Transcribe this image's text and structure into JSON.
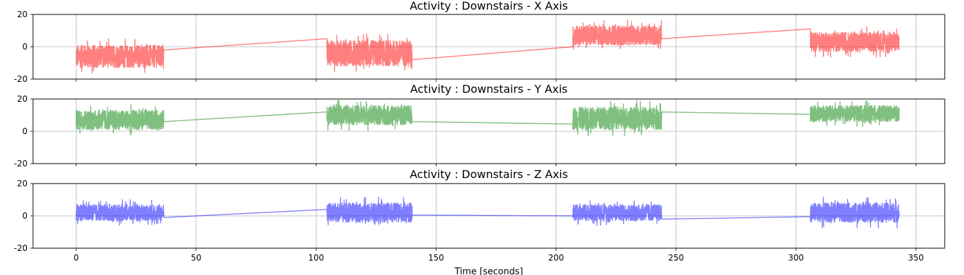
{
  "chart_data": [
    {
      "type": "line",
      "title": "Activity : Downstairs - X Axis",
      "xlabel": "",
      "ylabel": "",
      "xlim": [
        -18,
        362
      ],
      "ylim": [
        -20,
        20
      ],
      "yticks": [
        -20,
        0,
        20
      ],
      "grid": true,
      "series": [
        {
          "color": "#ff0000",
          "alpha": 0.5,
          "segments": [
            {
              "x_start": 0,
              "x_end": 36.5,
              "mean": -6,
              "amp": 7
            },
            {
              "x_start": 104.5,
              "x_end": 140,
              "mean": -4,
              "amp": 8
            },
            {
              "x_start": 207,
              "x_end": 244,
              "mean": 7,
              "amp": 6
            },
            {
              "x_start": 306,
              "x_end": 343,
              "mean": 3,
              "amp": 6
            }
          ],
          "bridges": [
            {
              "x": [
                36.5,
                104.5
              ],
              "y": [
                -2,
                5
              ]
            },
            {
              "x": [
                140,
                207
              ],
              "y": [
                -8,
                0
              ]
            },
            {
              "x": [
                244,
                306
              ],
              "y": [
                5,
                11
              ]
            }
          ]
        }
      ]
    },
    {
      "type": "line",
      "title": "Activity : Downstairs - Y Axis",
      "xlabel": "",
      "ylabel": "",
      "xlim": [
        -18,
        362
      ],
      "ylim": [
        -20,
        20
      ],
      "yticks": [
        -20,
        0,
        20
      ],
      "grid": true,
      "series": [
        {
          "color": "#008000",
          "alpha": 0.5,
          "segments": [
            {
              "x_start": 0,
              "x_end": 36.5,
              "mean": 7,
              "amp": 6
            },
            {
              "x_start": 104.5,
              "x_end": 140,
              "mean": 10,
              "amp": 6
            },
            {
              "x_start": 207,
              "x_end": 244,
              "mean": 8,
              "amp": 7
            },
            {
              "x_start": 306,
              "x_end": 343,
              "mean": 11,
              "amp": 5
            }
          ],
          "bridges": [
            {
              "x": [
                36.5,
                104.5
              ],
              "y": [
                6,
                12
              ]
            },
            {
              "x": [
                140,
                207
              ],
              "y": [
                6,
                4.5
              ]
            },
            {
              "x": [
                244,
                306
              ],
              "y": [
                12,
                10.5
              ]
            }
          ]
        }
      ]
    },
    {
      "type": "line",
      "title": "Activity : Downstairs - Z Axis",
      "xlabel": "Time [seconds]",
      "ylabel": "",
      "xlim": [
        -18,
        362
      ],
      "ylim": [
        -20,
        20
      ],
      "xticks": [
        0,
        50,
        100,
        150,
        200,
        250,
        300,
        350
      ],
      "yticks": [
        -20,
        0,
        20
      ],
      "grid": true,
      "series": [
        {
          "color": "#0000ff",
          "alpha": 0.5,
          "segments": [
            {
              "x_start": 0,
              "x_end": 36.5,
              "mean": 2,
              "amp": 5
            },
            {
              "x_start": 104.5,
              "x_end": 140,
              "mean": 2,
              "amp": 6
            },
            {
              "x_start": 207,
              "x_end": 244,
              "mean": 2,
              "amp": 5
            },
            {
              "x_start": 306,
              "x_end": 343,
              "mean": 2,
              "amp": 6
            }
          ],
          "bridges": [
            {
              "x": [
                36.5,
                104.5
              ],
              "y": [
                -1,
                4
              ]
            },
            {
              "x": [
                140,
                207
              ],
              "y": [
                0.5,
                0
              ]
            },
            {
              "x": [
                244,
                306
              ],
              "y": [
                -2,
                -0.5
              ]
            }
          ]
        }
      ]
    }
  ]
}
